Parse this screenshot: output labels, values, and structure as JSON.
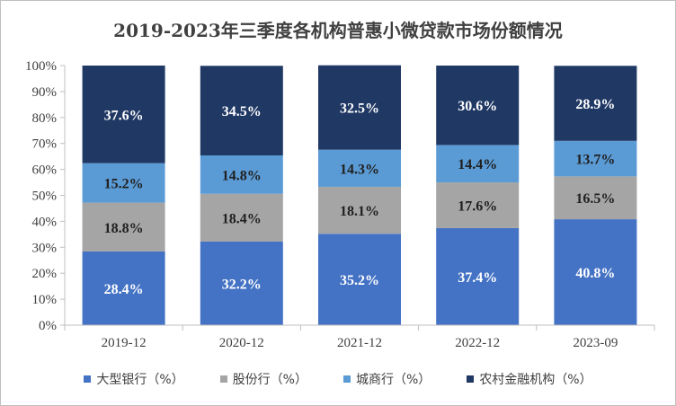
{
  "chart_data": {
    "type": "bar",
    "stacked": true,
    "title": "2019-2023年三季度各机构普惠小微贷款市场份额情况",
    "categories": [
      "2019-12",
      "2020-12",
      "2021-12",
      "2022-12",
      "2023-09"
    ],
    "series": [
      {
        "name": "大型银行（%）",
        "color": "#4472c4",
        "values": [
          28.4,
          32.2,
          35.2,
          37.4,
          40.8
        ]
      },
      {
        "name": "股份行（%）",
        "color": "#a5a5a5",
        "values": [
          18.8,
          18.4,
          18.1,
          17.6,
          16.5
        ]
      },
      {
        "name": "城商行（%）",
        "color": "#5b9bd5",
        "values": [
          15.2,
          14.8,
          14.3,
          14.4,
          13.7
        ]
      },
      {
        "name": "农村金融机构（%）",
        "color": "#203864",
        "values": [
          37.6,
          34.5,
          32.5,
          30.6,
          28.9
        ]
      }
    ],
    "data_labels": [
      [
        "28.4%",
        "32.2%",
        "35.2%",
        "37.4%",
        "40.8%"
      ],
      [
        "18.8%",
        "18.4%",
        "18.1%",
        "17.6%",
        "16.5%"
      ],
      [
        "15.2%",
        "14.8%",
        "14.3%",
        "14.4%",
        "13.7%"
      ],
      [
        "37.6%",
        "34.5%",
        "32.5%",
        "30.6%",
        "28.9%"
      ]
    ],
    "yticks": [
      "0%",
      "10%",
      "20%",
      "30%",
      "40%",
      "50%",
      "60%",
      "70%",
      "80%",
      "90%",
      "100%"
    ],
    "ylim": [
      0,
      100
    ],
    "grid": false,
    "legend_position": "bottom"
  }
}
